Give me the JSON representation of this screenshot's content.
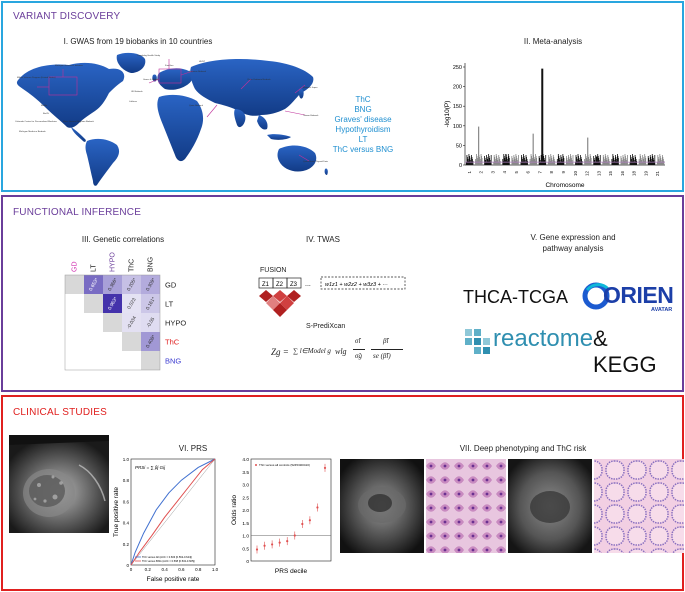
{
  "sections": {
    "variant_discovery": "VARIANT DISCOVERY",
    "functional_inference": "FUNCTIONAL INFERENCE",
    "clinical_studies": "CLINICAL STUDIES"
  },
  "colors": {
    "variant_border": "#29a6df",
    "functional_border": "#6a3d9a",
    "clinical_border": "#e0201f",
    "map_blue": "#1c4fa8",
    "trait_blue": "#1f8fd0",
    "heat_dark": "#3d2aa8",
    "heat_mid": "#7f73c6",
    "thc_red": "#e02020",
    "bng_blue": "#3a3ad0",
    "gd_magenta": "#d030b0",
    "roc_red": "#e05050",
    "roc_blue": "#4070d0"
  },
  "gwas": {
    "title": "I. GWAS from 19 biobanks in 10 countries",
    "traits": [
      "ThC",
      "BNG",
      "Graves' disease",
      "Hypothyroidism",
      "LT",
      "ThC versus BNG"
    ],
    "map_labels": [
      "Million Veteran Program (United States)",
      "Michigan Genomics Initiative",
      "Trøndelag Health Study",
      "FinnGen",
      "Estonian Biobank",
      "UK Biobank",
      "Lifelines",
      "BioMe",
      "BioVU",
      "Mass General Brigham Biobank",
      "China Kadoorie Biobank",
      "Biobank Japan",
      "Taiwan Biobank",
      "Qatar Biobank",
      "Colorado Center for Personalized Medicine",
      "Michigan Medicine Biobank",
      "HUNT",
      "Genes & Health",
      "Queensland Thyroid Data"
    ]
  },
  "meta": {
    "title": "II. Meta-analysis",
    "ylabel": "-log10(P)",
    "xlabel": "Chromosome",
    "yticks": [
      "0",
      "50",
      "100",
      "150",
      "200",
      "250"
    ],
    "xticks": [
      "1",
      "2",
      "3",
      "4",
      "5",
      "6",
      "7",
      "8",
      "9",
      "10",
      "12",
      "13",
      "15",
      "16",
      "18",
      "19",
      "21"
    ]
  },
  "genetic_corr": {
    "title": "III. Genetic correlations",
    "col_labels": [
      "GD",
      "LT",
      "HYPO",
      "ThC",
      "BNG"
    ],
    "row_labels": [
      "GD",
      "LT",
      "HYPO",
      "ThC",
      "BNG"
    ],
    "cells": [
      {
        "r": 0,
        "c": 1,
        "v": "0.653*",
        "level": 0.65
      },
      {
        "r": 0,
        "c": 2,
        "v": "0.366*",
        "level": 0.37
      },
      {
        "r": 0,
        "c": 3,
        "v": "0.205*",
        "level": 0.2
      },
      {
        "r": 0,
        "c": 4,
        "v": "0.309*",
        "level": 0.31
      },
      {
        "r": 1,
        "c": 2,
        "v": "0.963*",
        "level": 0.96
      },
      {
        "r": 1,
        "c": 3,
        "v": "0.023",
        "level": 0.02
      },
      {
        "r": 1,
        "c": 4,
        "v": "0.161*",
        "level": 0.16
      },
      {
        "r": 2,
        "c": 3,
        "v": "-0.034",
        "level": 0.03
      },
      {
        "r": 2,
        "c": 4,
        "v": "-0.05",
        "level": 0.05
      },
      {
        "r": 3,
        "c": 4,
        "v": "0.408*",
        "level": 0.41
      }
    ]
  },
  "twas": {
    "title": "IV. TWAS",
    "fusion_label": "FUSION",
    "z_labels": [
      "Z1",
      "Z2",
      "Z3"
    ],
    "ellipsis": "...",
    "fusion_formula": "w1z1 + w2z2 + w3z3 + ···",
    "predixcan_label": "S-PrediXcan",
    "predixcan_formula_lhs": "Zg =",
    "predixcan_formula_sum": "∑ l∈Model g",
    "predixcan_formula_w": "wlg",
    "predixcan_formula_frac1_top": "σ̂l",
    "predixcan_formula_frac1_bot": "σ̂g",
    "predixcan_formula_frac2_top": "β̂l",
    "predixcan_formula_frac2_bot": "se (β̂l)"
  },
  "gene_expr": {
    "title_line1": "V. Gene expression and",
    "title_line2": "pathway analysis",
    "thca": "THCA-TCGA",
    "orien": "ORIEN",
    "avatar": "AVATAR",
    "reactome": "reactome",
    "kegg": "& KEGG"
  },
  "prs": {
    "title": "VI. PRS",
    "roc_ylabel": "True positive rate",
    "roc_xlabel": "False positive rate",
    "roc_ticks": [
      "0",
      "0.2",
      "0.4",
      "0.6",
      "0.8",
      "1.0"
    ],
    "roc_formula": "PRSi = ∑ βj Gij",
    "roc_legend": [
      "ThC versus All (AUC = 0.603 [0.562-0.644])",
      "ThC versus BNG (AUC = 0.568 [0.532-0.605])"
    ],
    "or_ylabel": "Odds ratio",
    "or_xlabel": "PRS decile",
    "or_yticks": [
      "0",
      "0.5",
      "1.0",
      "1.5",
      "2.0",
      "2.5",
      "3.0",
      "3.5",
      "4.0"
    ],
    "or_legend": "ThC versus all controls (5245/400410)",
    "or_values": [
      0.45,
      0.6,
      0.65,
      0.72,
      0.78,
      1.0,
      1.45,
      1.6,
      2.1,
      3.65
    ]
  },
  "deep": {
    "title": "VII. Deep phenotyping and ThC risk"
  }
}
